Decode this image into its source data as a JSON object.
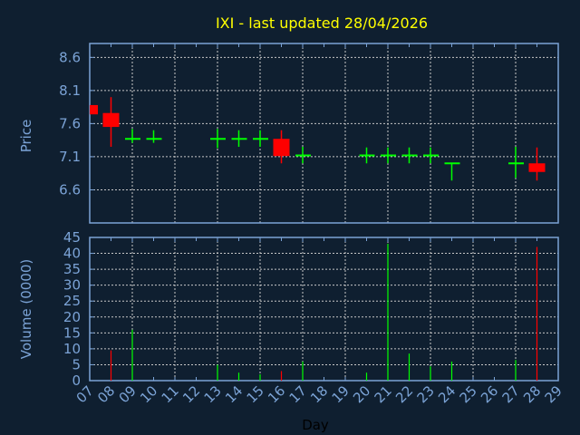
{
  "chart_data": {
    "type": "candlestick",
    "title": "IXI - last updated 28/04/2026",
    "xlabel": "Day",
    "ylabel": "Price",
    "volume_ylabel": "Volume (0000)",
    "x_ticks": [
      "07",
      "08",
      "09",
      "10",
      "11",
      "12",
      "13",
      "14",
      "15",
      "16",
      "17",
      "18",
      "19",
      "20",
      "21",
      "22",
      "23",
      "24",
      "25",
      "26",
      "27",
      "28",
      "29"
    ],
    "price_ticks": [
      6.6,
      7.1,
      7.6,
      8.1,
      8.6
    ],
    "price_ylim": [
      6.1,
      8.81
    ],
    "volume_ticks": [
      0,
      5,
      10,
      15,
      20,
      25,
      30,
      35,
      40,
      45
    ],
    "volume_ylim": [
      0,
      45
    ],
    "grid": true,
    "colors": {
      "background": "#0f1f30",
      "axis": "#7ba3d6",
      "title": "#ffff00",
      "up": "#00ff00",
      "down": "#ff0000",
      "grid": "#c8c8c8",
      "xlabel": "#000000"
    },
    "candles": [
      {
        "day": "07",
        "open": 7.88,
        "high": 7.88,
        "low": 7.74,
        "close": 7.74,
        "volume": 0
      },
      {
        "day": "08",
        "open": 7.76,
        "high": 8.0,
        "low": 7.25,
        "close": 7.55,
        "volume": 9.5
      },
      {
        "day": "09",
        "open": 7.37,
        "high": 7.52,
        "low": 7.31,
        "close": 7.37,
        "volume": 16
      },
      {
        "day": "10",
        "open": 7.37,
        "high": 7.5,
        "low": 7.31,
        "close": 7.37,
        "volume": 0
      },
      {
        "day": "13",
        "open": 7.37,
        "high": 7.52,
        "low": 7.23,
        "close": 7.37,
        "volume": 5
      },
      {
        "day": "14",
        "open": 7.37,
        "high": 7.5,
        "low": 7.25,
        "close": 7.37,
        "volume": 2.5
      },
      {
        "day": "15",
        "open": 7.37,
        "high": 7.5,
        "low": 7.25,
        "close": 7.37,
        "volume": 2
      },
      {
        "day": "16",
        "open": 7.37,
        "high": 7.5,
        "low": 7.0,
        "close": 7.11,
        "volume": 3
      },
      {
        "day": "17",
        "open": 7.12,
        "high": 7.25,
        "low": 7.0,
        "close": 7.12,
        "volume": 6
      },
      {
        "day": "20",
        "open": 7.12,
        "high": 7.24,
        "low": 7.0,
        "close": 7.12,
        "volume": 2.5
      },
      {
        "day": "21",
        "open": 7.12,
        "high": 7.24,
        "low": 7.0,
        "close": 7.12,
        "volume": 43
      },
      {
        "day": "22",
        "open": 7.12,
        "high": 7.24,
        "low": 7.0,
        "close": 7.12,
        "volume": 8.5
      },
      {
        "day": "23",
        "open": 7.12,
        "high": 7.24,
        "low": 7.0,
        "close": 7.12,
        "volume": 4.5
      },
      {
        "day": "24",
        "open": 7.0,
        "high": 7.0,
        "low": 6.74,
        "close": 7.0,
        "volume": 6
      },
      {
        "day": "27",
        "open": 7.0,
        "high": 7.25,
        "low": 6.78,
        "close": 7.0,
        "volume": 6.5
      },
      {
        "day": "28",
        "open": 7.0,
        "high": 7.24,
        "low": 6.74,
        "close": 6.87,
        "volume": 42
      }
    ]
  }
}
